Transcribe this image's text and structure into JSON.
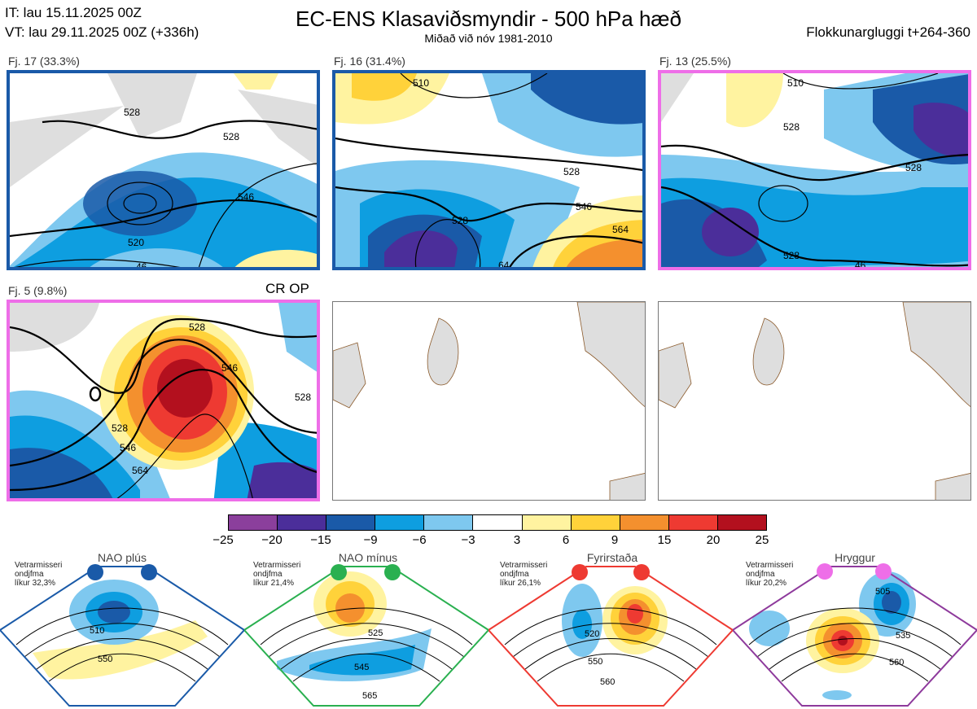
{
  "header": {
    "it": "IT: lau 15.11.2025 00Z",
    "vt": "VT: lau 29.11.2025 00Z  (+336h)",
    "title": "EC-ENS Klasaviðsmyndir - 500 hPa hæð",
    "subtitle": "Miðað við nóv 1981-2010",
    "window": "Flokkunargluggi t+264-360"
  },
  "panels": [
    {
      "label": "Fj. 17 (33.3%)",
      "contours": [
        "528",
        "528",
        "546",
        "520",
        "46"
      ]
    },
    {
      "label": "Fj. 16 (31.4%)",
      "contours": [
        "510",
        "528",
        "546",
        "564",
        "528",
        "64"
      ]
    },
    {
      "label": "Fj. 13 (25.5%)",
      "contours": [
        "510",
        "528",
        "528",
        "528",
        "46"
      ]
    },
    {
      "label": "Fj. 5 (9.8%)",
      "contours": [
        "528",
        "546",
        "528",
        "528",
        "546",
        "564"
      ]
    }
  ],
  "cr_op": "CR OP",
  "colorbar": {
    "colors": [
      "#8b3f9c",
      "#4b2e9a",
      "#1a5aa8",
      "#0e9ee0",
      "#7ec8ef",
      "#ffffff",
      "#fff3a0",
      "#ffd23a",
      "#f4902e",
      "#ee3a32",
      "#b3101e"
    ],
    "ticks": [
      "−25",
      "−20",
      "−15",
      "−9",
      "−6",
      "−3",
      "3",
      "6",
      "9",
      "15",
      "20",
      "25"
    ]
  },
  "regimes": [
    {
      "title": "NAO plús",
      "note1": "Vetrarmisseri",
      "note2": "ondjfma",
      "note3": "líkur 32,3%",
      "color": "#1a5aa8",
      "labels": [
        "510",
        "550"
      ]
    },
    {
      "title": "NAO mínus",
      "note1": "Vetrarmisseri",
      "note2": "ondjfma",
      "note3": "líkur 21,4%",
      "color": "#2ab050",
      "labels": [
        "525",
        "545",
        "565"
      ]
    },
    {
      "title": "Fyrirstaða",
      "note1": "Vetrarmisseri",
      "note2": "ondjfma",
      "note3": "líkur 26,1%",
      "color": "#ee3a32",
      "labels": [
        "520",
        "550",
        "560"
      ]
    },
    {
      "title": "Hryggur",
      "note1": "Vetrarmisseri",
      "note2": "ondjfma",
      "note3": "líkur 20,2%",
      "color": "#ee6ee8",
      "labels": [
        "505",
        "535",
        "560"
      ]
    }
  ]
}
